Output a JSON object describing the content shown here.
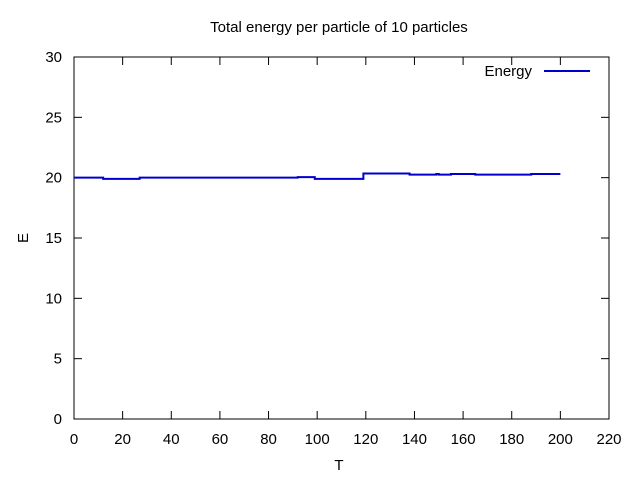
{
  "chart_data": {
    "type": "line",
    "title": "Total energy per particle of 10 particles",
    "xlabel": "T",
    "ylabel": "E",
    "xlim": [
      0,
      220
    ],
    "ylim": [
      0,
      30
    ],
    "xticks": [
      0,
      20,
      40,
      60,
      80,
      100,
      120,
      140,
      160,
      180,
      200,
      220
    ],
    "yticks": [
      0,
      5,
      10,
      15,
      20,
      25,
      30
    ],
    "grid": false,
    "legend_position": "top-right",
    "step": true,
    "series": [
      {
        "name": "Energy",
        "color": "#0000cc",
        "points": [
          [
            0,
            20.0
          ],
          [
            12,
            19.9
          ],
          [
            27,
            20.0
          ],
          [
            92,
            20.05
          ],
          [
            99,
            19.9
          ],
          [
            119,
            20.35
          ],
          [
            138,
            20.25
          ],
          [
            149,
            20.3
          ],
          [
            150,
            20.25
          ],
          [
            155,
            20.3
          ],
          [
            165,
            20.25
          ],
          [
            188,
            20.3
          ],
          [
            200,
            20.3
          ]
        ]
      }
    ]
  }
}
